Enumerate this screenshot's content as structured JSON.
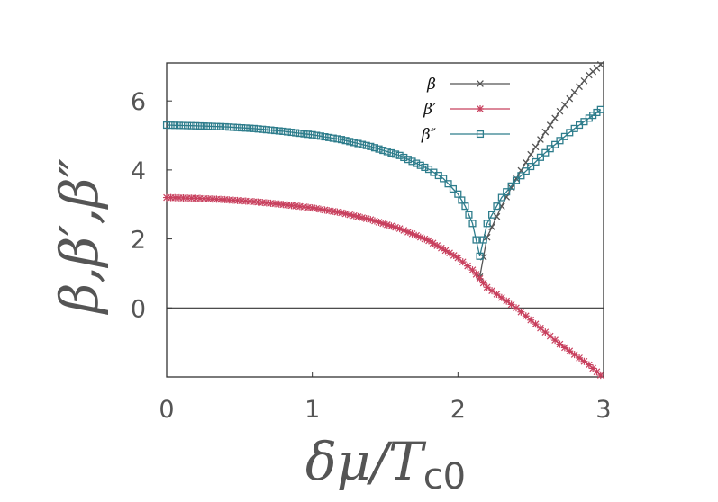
{
  "chart_data": {
    "type": "line",
    "title": "",
    "xlabel": "δμ/T_c0",
    "xlabel_main": "δμ/T",
    "xlabel_sub": "c0",
    "ylabel": "β,β′,β″",
    "xlim": [
      0,
      3
    ],
    "ylim": [
      -2,
      7.1
    ],
    "x_ticks": [
      "0",
      "1",
      "2",
      "3"
    ],
    "y_ticks": [
      "0",
      "2",
      "4",
      "6"
    ],
    "x_tick_values": [
      0,
      1,
      2,
      3
    ],
    "y_tick_values": [
      0,
      2,
      4,
      6
    ],
    "zero_line": true,
    "grid": false,
    "legend_position": "top-right",
    "series": [
      {
        "name": "β",
        "color": "#555555",
        "marker": "x",
        "x": [
          2.15,
          2.2,
          2.3,
          2.4,
          2.5,
          2.6,
          2.7,
          2.8,
          2.9,
          2.98
        ],
        "y": [
          0.9,
          2.05,
          2.95,
          3.75,
          4.45,
          5.1,
          5.7,
          6.25,
          6.75,
          7.05
        ]
      },
      {
        "name": "β′",
        "color": "#c8405e",
        "marker": "*",
        "x": [
          0,
          0.2,
          0.4,
          0.6,
          0.8,
          1.0,
          1.2,
          1.4,
          1.6,
          1.8,
          2.0,
          2.1,
          2.15,
          2.2,
          2.3,
          2.4,
          2.5,
          2.6,
          2.7,
          2.8,
          2.9,
          2.98
        ],
        "y": [
          3.2,
          3.18,
          3.14,
          3.08,
          3.0,
          2.9,
          2.76,
          2.56,
          2.3,
          1.95,
          1.45,
          1.1,
          0.85,
          0.6,
          0.3,
          0.0,
          -0.35,
          -0.7,
          -1.05,
          -1.35,
          -1.65,
          -1.95
        ]
      },
      {
        "name": "β″",
        "color": "#2e7d8c",
        "marker": "square",
        "x": [
          0,
          0.2,
          0.4,
          0.6,
          0.8,
          1.0,
          1.2,
          1.4,
          1.6,
          1.8,
          1.9,
          2.0,
          2.05,
          2.1,
          2.15,
          2.2,
          2.3,
          2.4,
          2.5,
          2.6,
          2.7,
          2.8,
          2.9,
          2.98
        ],
        "y": [
          5.3,
          5.28,
          5.25,
          5.2,
          5.12,
          5.02,
          4.88,
          4.68,
          4.42,
          4.02,
          3.75,
          3.3,
          2.95,
          2.45,
          1.5,
          2.45,
          3.2,
          3.7,
          4.1,
          4.5,
          4.85,
          5.2,
          5.5,
          5.75
        ]
      }
    ]
  }
}
